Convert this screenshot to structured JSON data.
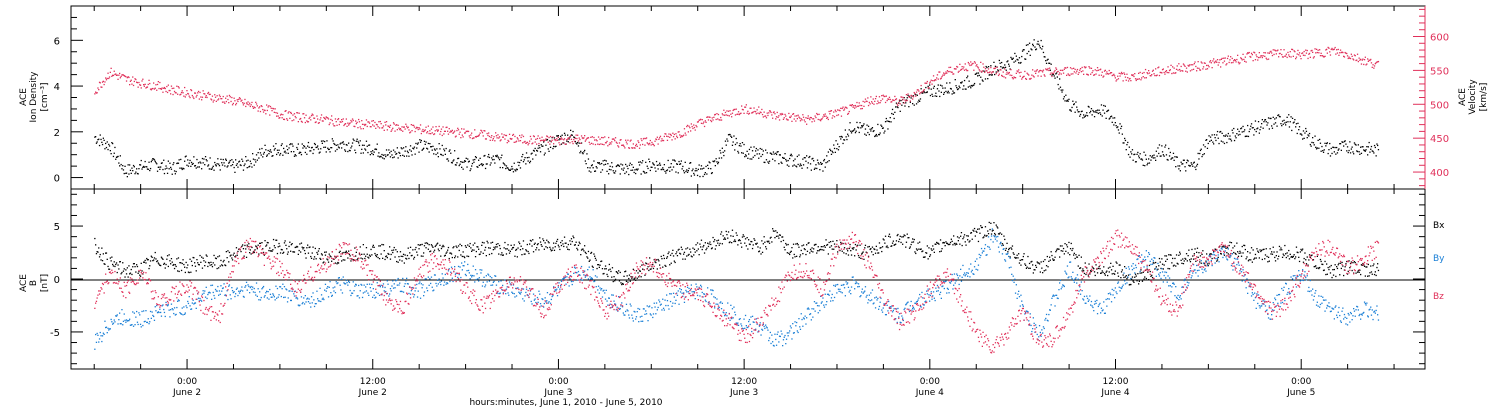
{
  "colors": {
    "black": "#000000",
    "red": "#e0305a",
    "blue": "#1a7fd6"
  },
  "chart_data": [
    {
      "type": "scatter",
      "panel": "ion-density-velocity",
      "ylabel_left": [
        "ACE",
        "Ion Density",
        "[cm⁻³]"
      ],
      "ylabel_right": [
        "ACE",
        "Velocity",
        "[km/s]"
      ],
      "ylim_left": [
        -0.5,
        7.5
      ],
      "ylim_right": [
        375,
        645
      ],
      "yticks_left": [
        0,
        2,
        4,
        6
      ],
      "yticks_right": [
        400,
        450,
        500,
        550,
        600
      ],
      "series": [
        {
          "name": "Ion Density",
          "color": "black",
          "axis": "left",
          "x": [
            -6,
            -5,
            -4,
            -3,
            -2,
            -1,
            0,
            1,
            2,
            3,
            4,
            5,
            6,
            7,
            8,
            9,
            10,
            11,
            12,
            13,
            14,
            15,
            16,
            17,
            18,
            19,
            20,
            21,
            22,
            23,
            24,
            25,
            26,
            27,
            28,
            29,
            30,
            31,
            32,
            33,
            34,
            35,
            36,
            37,
            38,
            39,
            40,
            41,
            42,
            43,
            44,
            45,
            46,
            47,
            48,
            49,
            50,
            51,
            52,
            53,
            54,
            55,
            56,
            57,
            58,
            59,
            60,
            61,
            62,
            63,
            64,
            65,
            66,
            67,
            68,
            69,
            70,
            71,
            72,
            73,
            74,
            75,
            76,
            77
          ],
          "y": [
            1.8,
            1.4,
            0.3,
            0.5,
            0.6,
            0.4,
            0.8,
            0.7,
            0.6,
            0.5,
            0.7,
            1.2,
            1.3,
            1.2,
            1.3,
            1.4,
            1.5,
            1.4,
            1.3,
            1.0,
            1.2,
            1.4,
            1.3,
            1.0,
            0.6,
            0.7,
            0.8,
            0.5,
            0.9,
            1.3,
            1.7,
            1.9,
            0.5,
            0.5,
            0.4,
            0.4,
            0.6,
            0.5,
            0.5,
            0.3,
            0.5,
            1.7,
            1.2,
            1.0,
            0.9,
            0.8,
            0.7,
            0.5,
            1.5,
            2.3,
            2.0,
            2.2,
            3.2,
            3.5,
            3.8,
            3.9,
            4.1,
            4.3,
            4.8,
            5.0,
            5.4,
            6.0,
            4.5,
            3.2,
            2.8,
            3.0,
            2.5,
            1.0,
            0.8,
            1.3,
            0.6,
            0.5,
            1.7,
            1.8,
            2.0,
            2.2,
            2.4,
            2.6,
            2.0,
            1.5,
            1.2,
            1.4,
            1.3,
            1.2
          ]
        },
        {
          "name": "Velocity",
          "color": "red",
          "axis": "right",
          "x": [
            -6,
            -5,
            -4,
            -3,
            -2,
            -1,
            0,
            1,
            2,
            3,
            4,
            5,
            6,
            7,
            8,
            9,
            10,
            11,
            12,
            13,
            14,
            15,
            16,
            17,
            18,
            19,
            20,
            21,
            22,
            23,
            24,
            25,
            26,
            27,
            28,
            29,
            30,
            31,
            32,
            33,
            34,
            35,
            36,
            37,
            38,
            39,
            40,
            41,
            42,
            43,
            44,
            45,
            46,
            47,
            48,
            49,
            50,
            51,
            52,
            53,
            54,
            55,
            56,
            57,
            58,
            59,
            60,
            61,
            62,
            63,
            64,
            65,
            66,
            67,
            68,
            69,
            70,
            71,
            72,
            73,
            74,
            75,
            76,
            77
          ],
          "y": [
            520,
            548,
            538,
            532,
            528,
            522,
            518,
            514,
            510,
            506,
            500,
            494,
            486,
            482,
            480,
            478,
            474,
            472,
            470,
            468,
            466,
            464,
            462,
            460,
            458,
            456,
            452,
            450,
            448,
            448,
            447,
            450,
            448,
            446,
            444,
            442,
            446,
            452,
            460,
            472,
            480,
            488,
            494,
            490,
            484,
            482,
            478,
            482,
            488,
            494,
            506,
            510,
            504,
            516,
            534,
            548,
            556,
            558,
            550,
            546,
            544,
            546,
            548,
            550,
            552,
            548,
            542,
            540,
            546,
            550,
            554,
            556,
            560,
            564,
            568,
            572,
            574,
            576,
            574,
            576,
            580,
            574,
            566,
            558
          ]
        }
      ]
    },
    {
      "type": "scatter",
      "panel": "imf-components",
      "ylabel_left": [
        "ACE",
        "B",
        "[nT]"
      ],
      "ylim": [
        -8.5,
        8.5
      ],
      "yticks_left": [
        -5,
        0,
        5
      ],
      "legend": [
        "Bx",
        "By",
        "Bz"
      ],
      "series": [
        {
          "name": "Bx",
          "color": "black",
          "x": [
            -6,
            -5,
            -4,
            -3,
            -2,
            -1,
            0,
            1,
            2,
            3,
            4,
            5,
            6,
            7,
            8,
            9,
            10,
            11,
            12,
            13,
            14,
            15,
            16,
            17,
            18,
            19,
            20,
            21,
            22,
            23,
            24,
            25,
            26,
            27,
            28,
            29,
            30,
            31,
            32,
            33,
            34,
            35,
            36,
            37,
            38,
            39,
            40,
            41,
            42,
            43,
            44,
            45,
            46,
            47,
            48,
            49,
            50,
            51,
            52,
            53,
            54,
            55,
            56,
            57,
            58,
            59,
            60,
            61,
            62,
            63,
            64,
            65,
            66,
            67,
            68,
            69,
            70,
            71,
            72,
            73,
            74,
            75,
            76,
            77
          ],
          "y": [
            3.2,
            1.5,
            0.8,
            1.0,
            2.0,
            1.6,
            1.2,
            1.8,
            1.5,
            2.4,
            2.8,
            3.0,
            3.2,
            2.9,
            2.5,
            2.2,
            2.0,
            2.6,
            2.8,
            2.5,
            2.2,
            2.8,
            3.0,
            2.6,
            2.8,
            2.9,
            3.0,
            2.7,
            3.1,
            3.3,
            3.4,
            3.6,
            2.0,
            1.0,
            0.0,
            0.5,
            1.5,
            2.0,
            2.4,
            3.0,
            3.5,
            4.2,
            3.6,
            3.0,
            4.5,
            2.6,
            3.0,
            3.2,
            3.0,
            2.8,
            2.5,
            3.4,
            4.0,
            3.2,
            2.4,
            3.6,
            3.8,
            4.2,
            5.0,
            3.0,
            1.8,
            1.0,
            2.2,
            3.0,
            1.0,
            0.8,
            1.2,
            0.0,
            0.5,
            1.5,
            2.0,
            2.5,
            1.8,
            3.0,
            2.8,
            2.2,
            2.4,
            2.6,
            2.3,
            1.5,
            0.8,
            1.2,
            1.0,
            0.8
          ]
        },
        {
          "name": "By",
          "color": "blue",
          "x": [
            -6,
            -5,
            -4,
            -3,
            -2,
            -1,
            0,
            1,
            2,
            3,
            4,
            5,
            6,
            7,
            8,
            9,
            10,
            11,
            12,
            13,
            14,
            15,
            16,
            17,
            18,
            19,
            20,
            21,
            22,
            23,
            24,
            25,
            26,
            27,
            28,
            29,
            30,
            31,
            32,
            33,
            34,
            35,
            36,
            37,
            38,
            39,
            40,
            41,
            42,
            43,
            44,
            45,
            46,
            47,
            48,
            49,
            50,
            51,
            52,
            53,
            54,
            55,
            56,
            57,
            58,
            59,
            60,
            61,
            62,
            63,
            64,
            65,
            66,
            67,
            68,
            69,
            70,
            71,
            72,
            73,
            74,
            75,
            76,
            77
          ],
          "y": [
            -6.0,
            -4.0,
            -3.5,
            -3.8,
            -3.0,
            -2.8,
            -2.5,
            -1.5,
            -1.0,
            -1.2,
            -0.8,
            -1.5,
            -1.0,
            -1.8,
            -2.0,
            -1.0,
            -0.5,
            -1.2,
            -1.0,
            -0.8,
            -0.6,
            -1.0,
            -0.2,
            0.5,
            1.0,
            0.2,
            -0.5,
            -1.0,
            -1.5,
            -2.0,
            -1.0,
            0.5,
            0.8,
            -1.5,
            -2.5,
            -3.5,
            -3.0,
            -2.2,
            -1.5,
            -1.0,
            -1.8,
            -3.0,
            -4.0,
            -4.5,
            -5.8,
            -5.0,
            -3.5,
            -2.0,
            -1.0,
            -0.5,
            -1.5,
            -2.5,
            -3.5,
            -2.0,
            -1.5,
            -0.8,
            0.5,
            1.5,
            4.0,
            2.0,
            -3.0,
            -5.0,
            -2.0,
            1.0,
            -1.5,
            -3.0,
            -1.0,
            1.0,
            2.0,
            0.5,
            -1.5,
            0.8,
            1.5,
            2.5,
            1.0,
            -2.0,
            -3.0,
            -1.0,
            0.5,
            -2.0,
            -3.0,
            -3.5,
            -2.8,
            -3.2
          ]
        },
        {
          "name": "Bz",
          "color": "red",
          "x": [
            -6,
            -5,
            -4,
            -3,
            -2,
            -1,
            0,
            1,
            2,
            3,
            4,
            5,
            6,
            7,
            8,
            9,
            10,
            11,
            12,
            13,
            14,
            15,
            16,
            17,
            18,
            19,
            20,
            21,
            22,
            23,
            24,
            25,
            26,
            27,
            28,
            29,
            30,
            31,
            32,
            33,
            34,
            35,
            36,
            37,
            38,
            39,
            40,
            41,
            42,
            43,
            44,
            45,
            46,
            47,
            48,
            49,
            50,
            51,
            52,
            53,
            54,
            55,
            56,
            57,
            58,
            59,
            60,
            61,
            62,
            63,
            64,
            65,
            66,
            67,
            68,
            69,
            70,
            71,
            72,
            73,
            74,
            75,
            76,
            77
          ],
          "y": [
            -2.0,
            0.5,
            -1.0,
            0.8,
            -2.0,
            -1.5,
            -0.5,
            -2.5,
            -3.8,
            1.5,
            3.5,
            2.0,
            1.0,
            -1.0,
            0.5,
            1.5,
            3.0,
            2.2,
            0.0,
            -2.0,
            -2.5,
            0.5,
            2.0,
            1.0,
            -1.0,
            -2.5,
            -1.5,
            0.0,
            -1.0,
            -3.0,
            -0.5,
            0.8,
            -0.5,
            -3.0,
            -2.0,
            1.0,
            1.5,
            0.0,
            -1.0,
            -1.5,
            -2.5,
            -4.0,
            -5.5,
            -4.0,
            -2.0,
            0.5,
            1.0,
            -1.0,
            3.0,
            4.0,
            1.5,
            -2.0,
            -4.0,
            -3.0,
            -1.0,
            0.5,
            -2.0,
            -5.0,
            -6.5,
            -5.0,
            -3.0,
            -6.0,
            -5.5,
            -3.0,
            0.5,
            2.0,
            4.0,
            3.0,
            1.0,
            -2.0,
            -3.0,
            1.5,
            2.0,
            3.0,
            1.0,
            -1.0,
            -3.0,
            -2.5,
            0.5,
            2.8,
            3.0,
            1.0,
            2.0,
            3.0
          ]
        }
      ]
    }
  ],
  "x_axis": {
    "unit": "hours",
    "range": [
      -7.5,
      80
    ],
    "ticks": [
      {
        "x": 0,
        "time": "0:00",
        "date": "June 2"
      },
      {
        "x": 12,
        "time": "12:00",
        "date": "June 2"
      },
      {
        "x": 24,
        "time": "0:00",
        "date": "June 3"
      },
      {
        "x": 36,
        "time": "12:00",
        "date": "June 3"
      },
      {
        "x": 48,
        "time": "0:00",
        "date": "June 4"
      },
      {
        "x": 60,
        "time": "12:00",
        "date": "June 4"
      },
      {
        "x": 72,
        "time": "0:00",
        "date": "June 5"
      }
    ],
    "xlabel": "hours:minutes, June  1, 2010 - June  5, 2010"
  }
}
